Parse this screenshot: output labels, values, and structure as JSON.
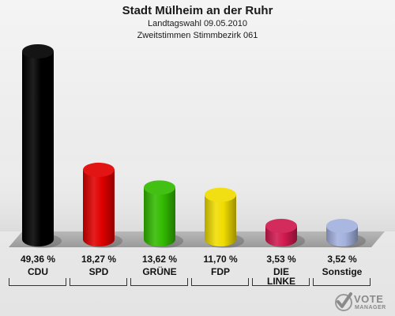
{
  "header": {
    "title": "Stadt Mülheim an der Ruhr",
    "subtitle": "Landtagswahl 09.05.2010",
    "subtitle2": "Zweitstimmen Stimmbezirk 061"
  },
  "chart_data": {
    "type": "bar",
    "title": "Stadt Mülheim an der Ruhr",
    "subtitle": "Landtagswahl 09.05.2010 · Zweitstimmen Stimmbezirk 061",
    "categories": [
      "CDU",
      "SPD",
      "GRÜNE",
      "FDP",
      "DIE LINKE",
      "Sonstige"
    ],
    "values": [
      49.36,
      18.27,
      13.62,
      11.7,
      3.53,
      3.52
    ],
    "value_labels": [
      "49,36 %",
      "18,27 %",
      "13,62 %",
      "11,70 %",
      "3,53 %",
      "3,52 %"
    ],
    "category_labels": [
      [
        "CDU"
      ],
      [
        "SPD"
      ],
      [
        "GRÜNE"
      ],
      [
        "FDP"
      ],
      [
        "DIE",
        "LINKE"
      ],
      [
        "Sonstige"
      ]
    ],
    "colors": [
      "#000000",
      "#e00000",
      "#33bb00",
      "#f0dc00",
      "#d0194f",
      "#a3b1de"
    ],
    "ylim": [
      0,
      49.36
    ]
  },
  "logo": {
    "word": "VOTE",
    "sub": "MANAGER",
    "icon": "vote-manager-check-icon"
  }
}
